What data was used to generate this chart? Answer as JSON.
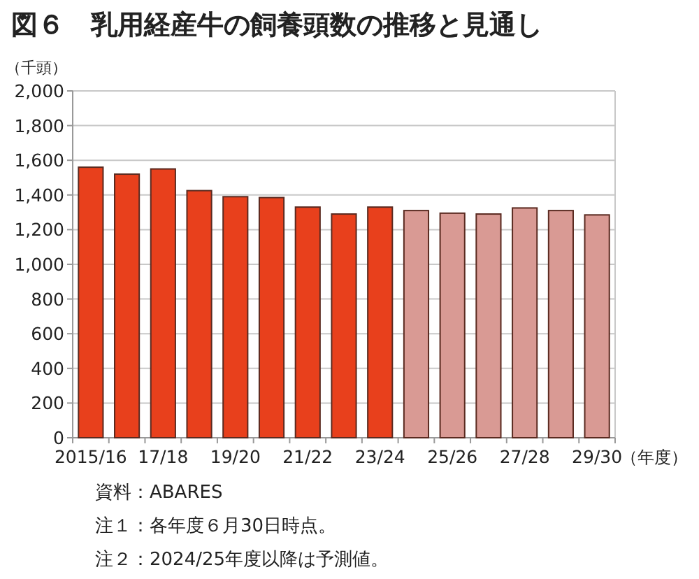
{
  "chart_data": {
    "type": "bar",
    "title": "図６　乳用経産牛の飼養頭数の推移と見通し",
    "ylabel": "（千頭）",
    "xlabel": "（年度）",
    "categories": [
      "2015/16",
      null,
      "17/18",
      null,
      "19/20",
      null,
      "21/22",
      null,
      "23/24",
      null,
      "25/26",
      null,
      "27/28",
      null,
      "29/30"
    ],
    "values": [
      1560,
      1520,
      1550,
      1425,
      1390,
      1385,
      1330,
      1290,
      1330,
      1310,
      1295,
      1290,
      1325,
      1310,
      1285
    ],
    "colors": [
      "#e8401c",
      "#e8401c",
      "#e8401c",
      "#e8401c",
      "#e8401c",
      "#e8401c",
      "#e8401c",
      "#e8401c",
      "#e8401c",
      "#d99a94",
      "#d99a94",
      "#d99a94",
      "#d99a94",
      "#d99a94",
      "#d99a94"
    ],
    "ylim": [
      0,
      2000
    ],
    "yticks": [
      0,
      200,
      400,
      600,
      800,
      {
        "value": 1000,
        "label": "1,000"
      },
      {
        "value": 1200,
        "label": "1,200"
      },
      {
        "value": 1400,
        "label": "1,400"
      },
      {
        "value": 1600,
        "label": "1,600"
      },
      {
        "value": 1800,
        "label": "1,800"
      },
      {
        "value": 2000,
        "label": "2,000"
      }
    ],
    "grid": "y",
    "annotations": [
      "資料：ABARES",
      "注１：各年度６月30日時点。",
      "注２：2024/25年度以降は予測値。"
    ]
  }
}
